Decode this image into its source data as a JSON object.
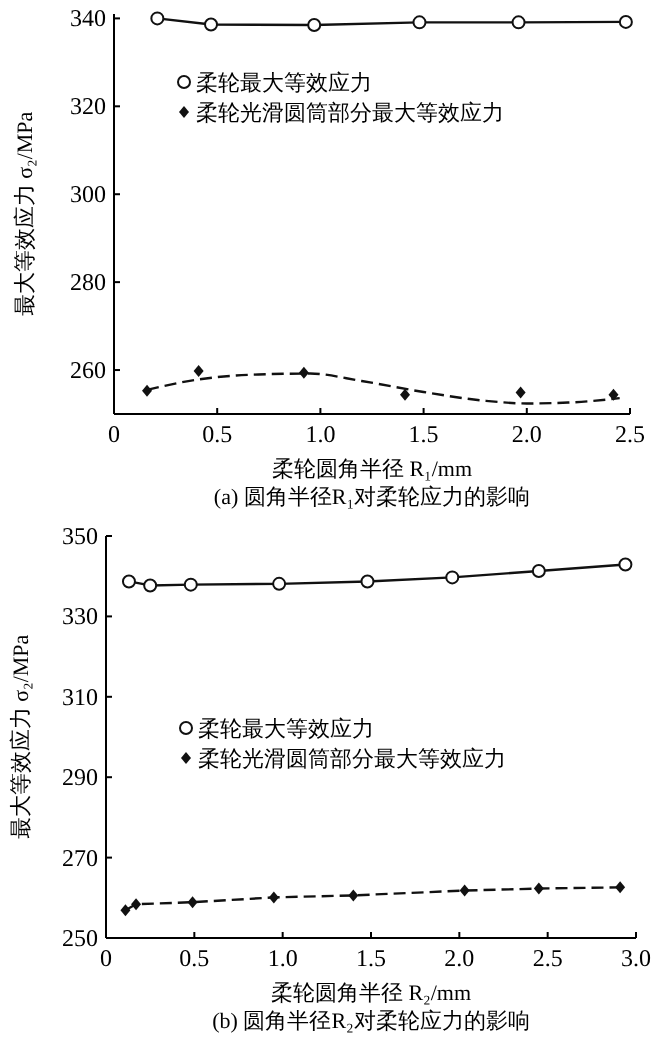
{
  "chart_data": [
    {
      "type": "line",
      "title": "(a) 圆角半径R₁对柔轮应力的影响",
      "xlabel": "柔轮圆角半径 R₁/mm",
      "ylabel": "最大等效应力 σ₂/MPa",
      "xlim": [
        0,
        2.5
      ],
      "xticks": [
        0,
        0.5,
        {
          "value": 1,
          "label": "1.0"
        },
        1.5,
        {
          "value": 2,
          "label": "2.0"
        },
        2.5
      ],
      "ylim": [
        250,
        341
      ],
      "yticks": [
        260,
        280,
        300,
        320,
        340
      ],
      "legend": "top",
      "grid": false,
      "series": [
        {
          "name": "柔轮最大等效应力",
          "type": "line",
          "color": "#111111",
          "marker": "circle",
          "line_style": "solid",
          "x": [
            0.21,
            0.47,
            0.97,
            1.48,
            1.96,
            2.48
          ],
          "values": [
            340,
            338.6,
            338.5,
            339.1,
            339.1,
            339.2
          ]
        },
        {
          "name": "柔轮光滑圆筒部分最大等效应力",
          "type": "scatter",
          "color": "#111111",
          "marker": "diamond",
          "x": [
            0.16,
            0.41,
            0.92,
            1.41,
            1.97,
            2.42
          ],
          "values": [
            255.3,
            259.8,
            259.4,
            254.4,
            254.9,
            254.4
          ]
        },
        {
          "type": "line",
          "color": "#111111",
          "marker": "none",
          "line_style": "dashed",
          "x": [
            0.16,
            0.4,
            0.7,
            0.95,
            1.2,
            1.5,
            1.8,
            2.0,
            2.2,
            2.45
          ],
          "values": [
            255.5,
            257.8,
            259,
            259.2,
            257.5,
            255,
            253,
            252.4,
            252.6,
            253.6
          ]
        }
      ]
    },
    {
      "type": "line",
      "title": "(b) 圆角半径R₂对柔轮应力的影响",
      "xlabel": "柔轮圆角半径 R₂/mm",
      "ylabel": "最大等效应力 σ₂/MPa",
      "xlim": [
        0,
        3
      ],
      "xticks": [
        0,
        0.5,
        {
          "value": 1,
          "label": "1.0"
        },
        1.5,
        {
          "value": 2,
          "label": "2.0"
        },
        2.5,
        {
          "value": 3,
          "label": "3.0"
        }
      ],
      "ylim": [
        250,
        350
      ],
      "yticks": [
        250,
        270,
        290,
        310,
        330,
        350
      ],
      "legend": "left",
      "grid": false,
      "series": [
        {
          "name": "柔轮最大等效应力",
          "type": "line",
          "color": "#111111",
          "marker": "circle",
          "line_style": "solid",
          "x": [
            0.13,
            0.25,
            0.48,
            0.98,
            1.48,
            1.96,
            2.45,
            2.94
          ],
          "values": [
            338.7,
            337.7,
            337.9,
            338.1,
            338.7,
            339.7,
            341.3,
            342.9
          ]
        },
        {
          "name": "柔轮光滑圆筒部分最大等效应力",
          "type": "line",
          "color": "#111111",
          "marker": "diamond",
          "line_style": "dashed",
          "x": [
            0.11,
            0.17,
            0.49,
            0.95,
            1.4,
            2.03,
            2.45,
            2.91
          ],
          "values": [
            256.9,
            258.4,
            258.9,
            260.1,
            260.6,
            261.8,
            262.3,
            262.6
          ]
        }
      ]
    }
  ]
}
